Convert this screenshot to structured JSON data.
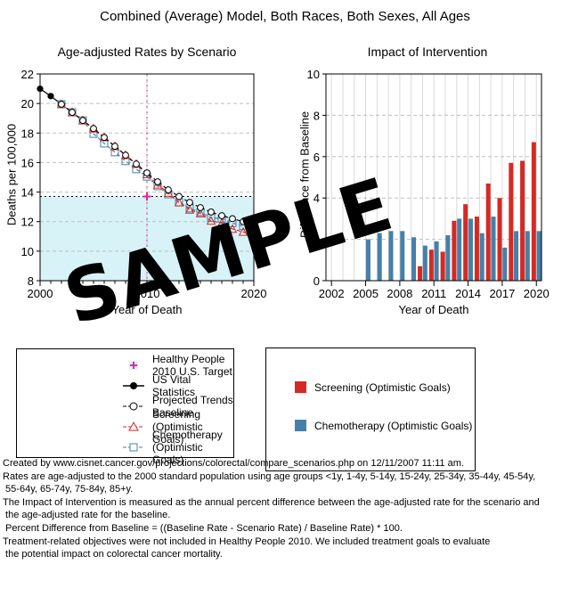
{
  "page": {
    "title": "Combined (Average) Model, Both Races, Both Sexes, All Ages"
  },
  "watermark": "SAMPLE",
  "colors": {
    "screening": "#d42a25",
    "chemotherapy": "#4680a8",
    "target": "#e6269e",
    "band": "#d8f3f8",
    "grid": "#bfbfbf",
    "year_grid": "#d9d9d9"
  },
  "chart_data": [
    {
      "type": "line",
      "title": "Age-adjusted Rates by Scenario",
      "xlabel": "Year of Death",
      "ylabel": "Deaths per 100,000",
      "xlim": [
        2000,
        2020
      ],
      "ylim": [
        8,
        22
      ],
      "yticks": [
        8,
        10,
        12,
        14,
        16,
        18,
        20,
        22
      ],
      "xticks": [
        2000,
        2010,
        2020
      ],
      "grid": "dashed horizontal at each ytick; vertical at 2010",
      "target": {
        "name": "Healthy People 2010 U.S. Target",
        "x": 2010,
        "y": 13.7
      },
      "band": {
        "from": 8,
        "to": 13.7
      },
      "series": [
        {
          "name": "US Vital Statistics",
          "marker": "filled-circle",
          "line": "solid",
          "color": "#000000",
          "x": [
            2000,
            2001,
            2002
          ],
          "y": [
            21.0,
            20.5,
            19.95
          ]
        },
        {
          "name": "Chemotherapy (Optimistic Goals)",
          "marker": "open-square",
          "line": "dashed",
          "color": "#4680a8",
          "x": [
            2002,
            2003,
            2004,
            2005,
            2006,
            2007,
            2008,
            2009,
            2010,
            2011,
            2012,
            2013,
            2014,
            2015,
            2016,
            2017,
            2018,
            2019,
            2020
          ],
          "y": [
            19.95,
            19.4,
            18.85,
            17.95,
            17.3,
            16.7,
            16.1,
            15.55,
            15.05,
            14.4,
            13.85,
            13.3,
            12.9,
            12.65,
            12.25,
            12.2,
            11.9,
            11.7,
            11.55
          ]
        },
        {
          "name": "Screening (Optimistic Goals)",
          "marker": "open-triangle",
          "line": "dashed",
          "color": "#d42a25",
          "x": [
            2002,
            2003,
            2004,
            2005,
            2006,
            2007,
            2008,
            2009,
            2010,
            2011,
            2012,
            2013,
            2014,
            2015,
            2016,
            2017,
            2018,
            2019,
            2020
          ],
          "y": [
            19.95,
            19.4,
            18.85,
            18.3,
            17.7,
            17.1,
            16.5,
            15.9,
            15.2,
            14.5,
            13.95,
            13.3,
            12.8,
            12.55,
            12.05,
            11.9,
            11.5,
            11.3,
            11.05
          ]
        },
        {
          "name": "Projected Trends Baseline",
          "marker": "open-circle",
          "line": "dashed",
          "color": "#000000",
          "x": [
            2002,
            2003,
            2004,
            2005,
            2006,
            2007,
            2008,
            2009,
            2010,
            2011,
            2012,
            2013,
            2014,
            2015,
            2016,
            2017,
            2018,
            2019,
            2020
          ],
          "y": [
            19.95,
            19.4,
            18.85,
            18.3,
            17.7,
            17.1,
            16.5,
            15.9,
            15.3,
            14.7,
            14.15,
            13.7,
            13.3,
            12.95,
            12.65,
            12.4,
            12.2,
            12.0,
            11.85
          ]
        }
      ]
    },
    {
      "type": "bar",
      "title": "Impact of Intervention",
      "xlabel": "Year of Death",
      "ylabel": "Difference from Baseline",
      "ylim": [
        0,
        10
      ],
      "yticks": [
        0,
        2,
        4,
        6,
        8,
        10
      ],
      "xticks": [
        2002,
        2005,
        2008,
        2011,
        2014,
        2017,
        2020
      ],
      "grid": "dashed horizontal at 2,4,6,8; light vertical at every year 2002-2020",
      "categories": [
        2005,
        2006,
        2007,
        2008,
        2009,
        2010,
        2011,
        2012,
        2013,
        2014,
        2015,
        2016,
        2017,
        2018,
        2019,
        2020
      ],
      "series": [
        {
          "name": "Screening (Optimistic Goals)",
          "color": "#d42a25",
          "values": [
            0,
            0,
            0,
            0,
            0,
            0.7,
            1.5,
            1.4,
            2.9,
            3.7,
            3.1,
            4.7,
            4.0,
            5.7,
            5.8,
            6.7
          ]
        },
        {
          "name": "Chemotherapy (Optimistic Goals)",
          "color": "#4680a8",
          "values": [
            2.0,
            2.3,
            2.4,
            2.4,
            2.1,
            1.7,
            1.9,
            2.2,
            3.0,
            3.0,
            2.3,
            3.1,
            1.6,
            2.4,
            2.4,
            2.4
          ]
        }
      ]
    }
  ],
  "legends": {
    "left": {
      "items": [
        {
          "label": "Healthy People 2010 U.S. Target"
        },
        {
          "label": "US Vital Statistics"
        },
        {
          "label": "Projected Trends Baseline"
        },
        {
          "label": "Screening (Optimistic Goals)"
        },
        {
          "label": "Chemotherapy (Optimistic Goals)"
        }
      ]
    },
    "right": {
      "items": [
        {
          "label": "Screening (Optimistic Goals)"
        },
        {
          "label": "Chemotherapy (Optimistic Goals)"
        }
      ]
    }
  },
  "footer_lines": [
    "Created by www.cisnet.cancer.gov/projections/colorectal/compare_scenarios.php on 12/11/2007 11:11 am.",
    "Rates are age-adjusted to the 2000 standard population using age groups <1y, 1-4y, 5-14y, 15-24y, 25-34y, 35-44y, 45-54y,",
    " 55-64y, 65-74y, 75-84y, 85+y.",
    "The Impact of Intervention is measured as the annual percent difference between the age-adjusted rate for the scenario and",
    " the age-adjusted rate for the baseline.",
    " Percent Difference from Baseline = ((Baseline Rate - Scenario Rate) / Baseline Rate) * 100.",
    "Treatment-related objectives were not included in Healthy People 2010. We included treatment goals to evaluate",
    " the potential impact on colorectal cancer mortality."
  ]
}
